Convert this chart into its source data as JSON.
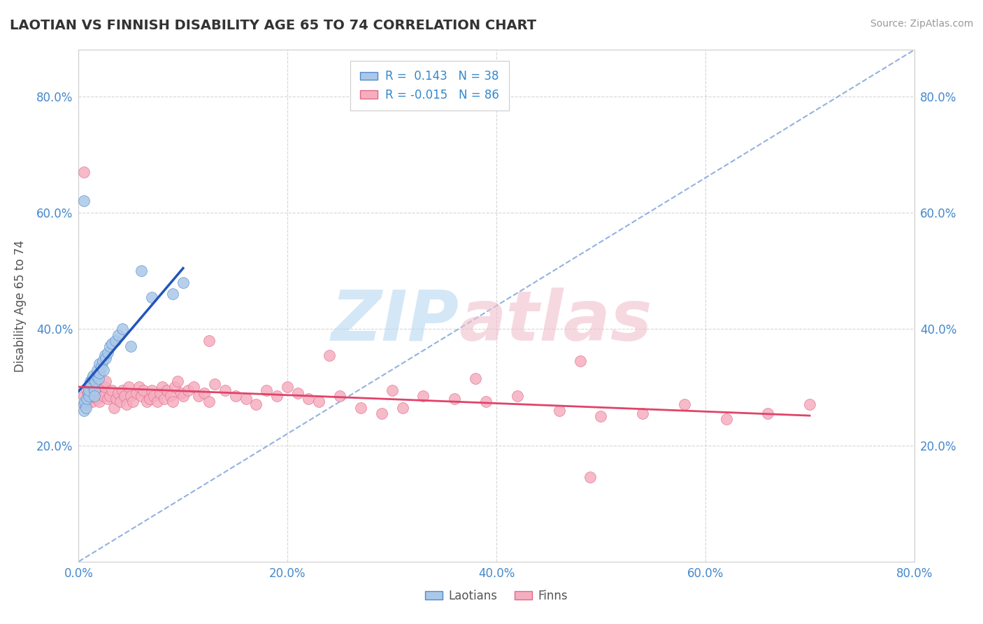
{
  "title": "LAOTIAN VS FINNISH DISABILITY AGE 65 TO 74 CORRELATION CHART",
  "source_text": "Source: ZipAtlas.com",
  "ylabel": "Disability Age 65 to 74",
  "xmin": 0.0,
  "xmax": 0.8,
  "ymin": 0.0,
  "ymax": 0.88,
  "x_tick_vals": [
    0.0,
    0.2,
    0.4,
    0.6,
    0.8
  ],
  "y_tick_vals": [
    0.2,
    0.4,
    0.6,
    0.8
  ],
  "laotian_color": "#aac8e8",
  "finn_color": "#f5aec0",
  "laotian_edge": "#5588cc",
  "finn_edge": "#e06888",
  "trend_laotian_color": "#2255bb",
  "trend_finn_color": "#e04468",
  "trend_dashed_color": "#88aadd",
  "background_color": "#ffffff",
  "grid_color": "#cccccc",
  "laotian_x": [
    0.005,
    0.005,
    0.006,
    0.007,
    0.008,
    0.009,
    0.01,
    0.01,
    0.01,
    0.011,
    0.012,
    0.013,
    0.014,
    0.015,
    0.015,
    0.016,
    0.017,
    0.018,
    0.019,
    0.02,
    0.02,
    0.022,
    0.023,
    0.024,
    0.025,
    0.026,
    0.028,
    0.03,
    0.032,
    0.035,
    0.038,
    0.042,
    0.05,
    0.06,
    0.07,
    0.09,
    0.1,
    0.005
  ],
  "laotian_y": [
    0.27,
    0.26,
    0.275,
    0.265,
    0.28,
    0.29,
    0.3,
    0.285,
    0.295,
    0.31,
    0.305,
    0.315,
    0.32,
    0.295,
    0.285,
    0.31,
    0.32,
    0.33,
    0.315,
    0.34,
    0.325,
    0.335,
    0.345,
    0.33,
    0.355,
    0.35,
    0.36,
    0.37,
    0.375,
    0.38,
    0.39,
    0.4,
    0.37,
    0.5,
    0.455,
    0.46,
    0.48,
    0.62
  ],
  "finn_x": [
    0.005,
    0.007,
    0.008,
    0.01,
    0.012,
    0.013,
    0.014,
    0.015,
    0.016,
    0.018,
    0.02,
    0.02,
    0.022,
    0.024,
    0.025,
    0.026,
    0.028,
    0.03,
    0.032,
    0.034,
    0.036,
    0.038,
    0.04,
    0.042,
    0.044,
    0.046,
    0.048,
    0.05,
    0.052,
    0.055,
    0.058,
    0.06,
    0.062,
    0.065,
    0.068,
    0.07,
    0.072,
    0.075,
    0.078,
    0.08,
    0.082,
    0.085,
    0.088,
    0.09,
    0.092,
    0.095,
    0.098,
    0.1,
    0.105,
    0.11,
    0.115,
    0.12,
    0.125,
    0.13,
    0.14,
    0.15,
    0.16,
    0.17,
    0.18,
    0.19,
    0.2,
    0.21,
    0.22,
    0.23,
    0.25,
    0.27,
    0.29,
    0.31,
    0.33,
    0.36,
    0.39,
    0.42,
    0.46,
    0.5,
    0.54,
    0.58,
    0.62,
    0.66,
    0.7,
    0.3,
    0.125,
    0.24,
    0.48,
    0.38,
    0.49,
    0.005
  ],
  "finn_y": [
    0.285,
    0.27,
    0.295,
    0.28,
    0.3,
    0.275,
    0.285,
    0.29,
    0.295,
    0.28,
    0.275,
    0.29,
    0.295,
    0.285,
    0.3,
    0.31,
    0.28,
    0.285,
    0.295,
    0.265,
    0.28,
    0.29,
    0.275,
    0.295,
    0.285,
    0.27,
    0.3,
    0.285,
    0.275,
    0.29,
    0.3,
    0.285,
    0.295,
    0.275,
    0.28,
    0.295,
    0.285,
    0.275,
    0.29,
    0.3,
    0.28,
    0.295,
    0.285,
    0.275,
    0.3,
    0.31,
    0.29,
    0.285,
    0.295,
    0.3,
    0.285,
    0.29,
    0.275,
    0.305,
    0.295,
    0.285,
    0.28,
    0.27,
    0.295,
    0.285,
    0.3,
    0.29,
    0.28,
    0.275,
    0.285,
    0.265,
    0.255,
    0.265,
    0.285,
    0.28,
    0.275,
    0.285,
    0.26,
    0.25,
    0.255,
    0.27,
    0.245,
    0.255,
    0.27,
    0.295,
    0.38,
    0.355,
    0.345,
    0.315,
    0.145,
    0.67
  ]
}
